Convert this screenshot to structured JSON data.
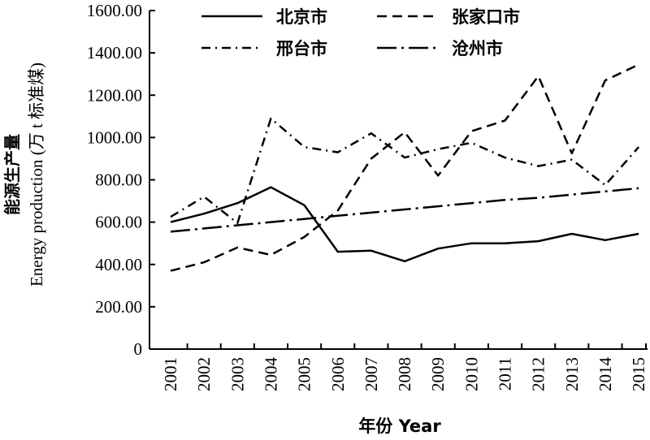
{
  "chart_data": {
    "type": "line",
    "xlabel": "年份 Year",
    "ylabel_cn": "能源生产量",
    "ylabel_en": "Energy production (万 t 标准煤)",
    "ylim": [
      0,
      1600
    ],
    "yticks": [
      "0",
      "200.00",
      "400.00",
      "600.00",
      "800.00",
      "1000.00",
      "1200.00",
      "1400.00",
      "1600.00"
    ],
    "categories": [
      "2001",
      "2002",
      "2003",
      "2004",
      "2005",
      "2006",
      "2007",
      "2008",
      "2009",
      "2010",
      "2011",
      "2012",
      "2013",
      "2014",
      "2015"
    ],
    "grid": false,
    "legend_position": "top",
    "series": [
      {
        "name": "北京市",
        "style": "solid",
        "values": [
          600,
          640,
          690,
          765,
          680,
          460,
          465,
          415,
          475,
          500,
          500,
          510,
          545,
          515,
          545
        ]
      },
      {
        "name": "张家口市",
        "style": "dashed",
        "values": [
          370,
          410,
          480,
          445,
          530,
          655,
          900,
          1025,
          820,
          1030,
          1080,
          1290,
          925,
          1270,
          1345
        ]
      },
      {
        "name": "邢台市",
        "style": "dashdot",
        "values": [
          625,
          720,
          595,
          1090,
          955,
          930,
          1020,
          905,
          945,
          975,
          905,
          865,
          895,
          775,
          955
        ]
      },
      {
        "name": "沧州市",
        "style": "longdashdot",
        "values": [
          555,
          570,
          585,
          600,
          615,
          630,
          645,
          660,
          675,
          690,
          705,
          715,
          730,
          745,
          760
        ]
      }
    ]
  }
}
